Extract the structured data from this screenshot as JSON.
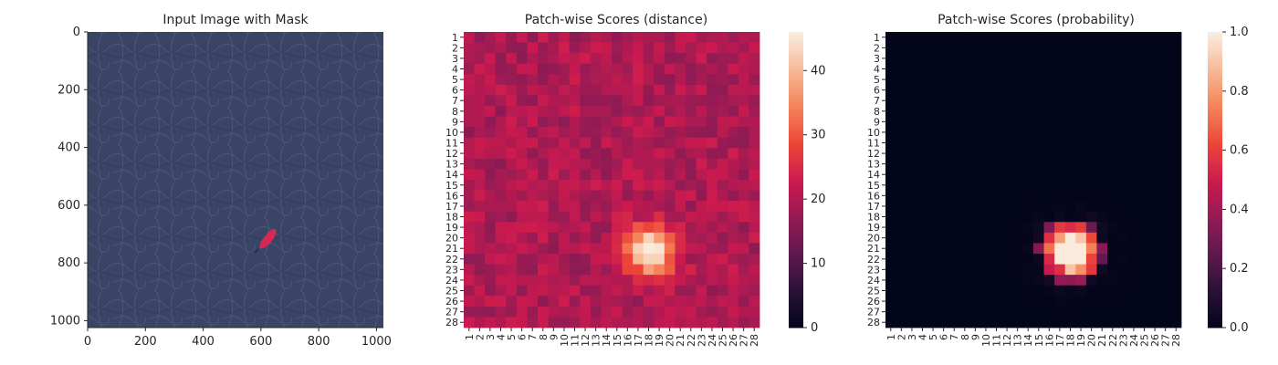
{
  "chart_data": [
    {
      "type": "image",
      "title": "Input Image with Mask",
      "xlabel": "",
      "ylabel": "",
      "xlim": [
        0,
        1024
      ],
      "ylim": [
        1024,
        0
      ],
      "x_ticks": [
        "0",
        "200",
        "400",
        "600",
        "800",
        "1000"
      ],
      "y_ticks": [
        "0",
        "200",
        "400",
        "600",
        "800",
        "1000"
      ],
      "image_description": "dark navy leather texture",
      "colors": {
        "background": "#3a4566",
        "mask": "#e8254f"
      },
      "mask_centroid": {
        "x": 615,
        "y": 720
      }
    },
    {
      "type": "heatmap",
      "title": "Patch-wise Scores (distance)",
      "grid": [
        28,
        28
      ],
      "x_ticks": [
        "1",
        "2",
        "3",
        "4",
        "5",
        "6",
        "7",
        "8",
        "9",
        "10",
        "11",
        "12",
        "13",
        "14",
        "15",
        "16",
        "17",
        "18",
        "19",
        "20",
        "21",
        "22",
        "23",
        "24",
        "25",
        "26",
        "27",
        "28"
      ],
      "y_ticks": [
        "1",
        "2",
        "3",
        "4",
        "5",
        "6",
        "7",
        "8",
        "9",
        "10",
        "11",
        "12",
        "13",
        "14",
        "15",
        "16",
        "17",
        "18",
        "19",
        "20",
        "21",
        "22",
        "23",
        "24",
        "25",
        "26",
        "27",
        "28"
      ],
      "colorbar": {
        "min": 0,
        "max": 46,
        "ticks": [
          "0",
          "10",
          "20",
          "30",
          "40"
        ]
      },
      "baseline": 20,
      "hotspot": {
        "row": 21,
        "col": 18,
        "peak": 46
      }
    },
    {
      "type": "heatmap",
      "title": "Patch-wise Scores (probability)",
      "grid": [
        28,
        28
      ],
      "x_ticks": [
        "1",
        "2",
        "3",
        "4",
        "5",
        "6",
        "7",
        "8",
        "9",
        "10",
        "11",
        "12",
        "13",
        "14",
        "15",
        "16",
        "17",
        "18",
        "19",
        "20",
        "21",
        "22",
        "23",
        "24",
        "25",
        "26",
        "27",
        "28"
      ],
      "y_ticks": [
        "1",
        "2",
        "3",
        "4",
        "5",
        "6",
        "7",
        "8",
        "9",
        "10",
        "11",
        "12",
        "13",
        "14",
        "15",
        "16",
        "17",
        "18",
        "19",
        "20",
        "21",
        "22",
        "23",
        "24",
        "25",
        "26",
        "27",
        "28"
      ],
      "colorbar": {
        "min": 0,
        "max": 1,
        "ticks": [
          "0.0",
          "0.2",
          "0.4",
          "0.6",
          "0.8",
          "1.0"
        ]
      },
      "baseline": 0,
      "hotspot": {
        "row": 21,
        "col": 18,
        "peak": 1
      }
    }
  ]
}
